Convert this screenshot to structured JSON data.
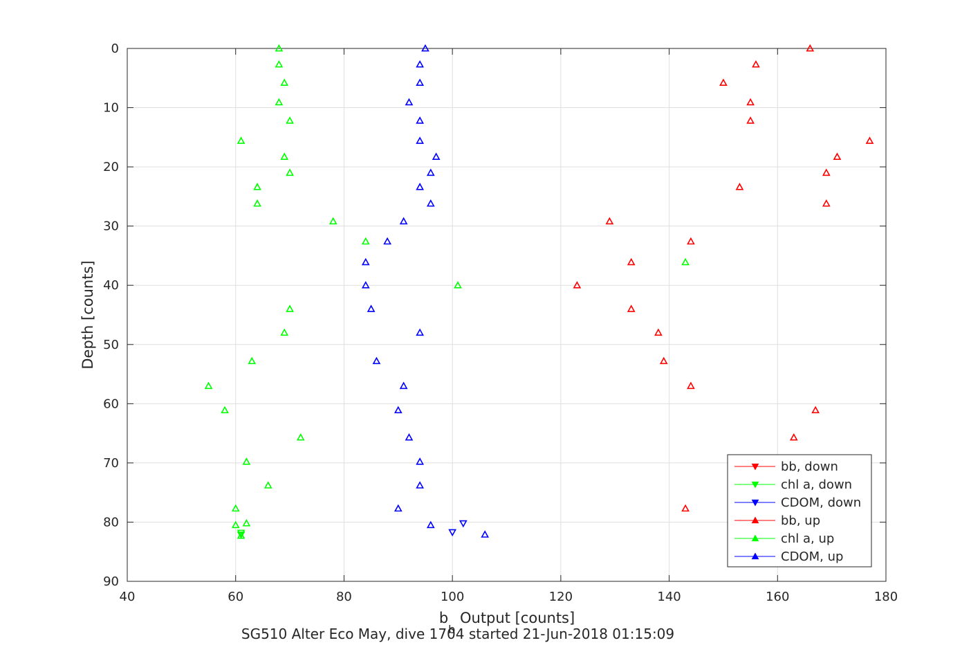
{
  "chart_data": {
    "type": "scatter",
    "xlabel_main": "b",
    "xlabel_sub": "b",
    "xlabel_rest": " Output [counts]",
    "ylabel": "Depth [counts]",
    "subtitle": "SG510 Alter Eco May, dive 1704 started 21-Jun-2018 01:15:09",
    "xlim": [
      40,
      180
    ],
    "ylim": [
      0,
      90
    ],
    "y_reversed": true,
    "x_ticks": [
      40,
      60,
      80,
      100,
      120,
      140,
      160,
      180
    ],
    "y_ticks": [
      0,
      10,
      20,
      30,
      40,
      50,
      60,
      70,
      80,
      90
    ],
    "grid": true,
    "legend_position": "bottom-right",
    "series": [
      {
        "name": "bb, down",
        "color": "#ff0000",
        "marker": "triangle-down",
        "points": []
      },
      {
        "name": "chl a, down",
        "color": "#00ff00",
        "marker": "triangle-down",
        "points": [
          [
            61,
            81.8
          ],
          [
            61,
            82.1
          ]
        ]
      },
      {
        "name": "CDOM, down",
        "color": "#0000ff",
        "marker": "triangle-down",
        "points": [
          [
            102,
            80.2
          ],
          [
            100,
            81.7
          ]
        ]
      },
      {
        "name": "bb, up",
        "color": "#ff0000",
        "marker": "triangle-up",
        "points": [
          [
            166,
            0
          ],
          [
            156,
            2.7
          ],
          [
            150,
            5.8
          ],
          [
            155,
            9.1
          ],
          [
            155,
            12.2
          ],
          [
            177,
            15.6
          ],
          [
            171,
            18.3
          ],
          [
            169,
            21
          ],
          [
            153,
            23.4
          ],
          [
            169,
            26.2
          ],
          [
            129,
            29.2
          ],
          [
            144,
            32.6
          ],
          [
            133,
            36.1
          ],
          [
            123,
            40
          ],
          [
            133,
            44
          ],
          [
            138,
            48
          ],
          [
            139,
            52.8
          ],
          [
            144,
            57
          ],
          [
            167,
            61.1
          ],
          [
            163,
            65.7
          ],
          [
            143,
            77.7
          ]
        ]
      },
      {
        "name": "chl a, up",
        "color": "#00ff00",
        "marker": "triangle-up",
        "points": [
          [
            68,
            0
          ],
          [
            68,
            2.7
          ],
          [
            69,
            5.8
          ],
          [
            68,
            9.1
          ],
          [
            70,
            12.2
          ],
          [
            61,
            15.6
          ],
          [
            69,
            18.3
          ],
          [
            70,
            21
          ],
          [
            64,
            23.4
          ],
          [
            64,
            26.2
          ],
          [
            78,
            29.2
          ],
          [
            84,
            32.6
          ],
          [
            143,
            36.1
          ],
          [
            101,
            40
          ],
          [
            70,
            44
          ],
          [
            69,
            48
          ],
          [
            63,
            52.8
          ],
          [
            55,
            57
          ],
          [
            58,
            61.1
          ],
          [
            72,
            65.7
          ],
          [
            62,
            69.8
          ],
          [
            66,
            73.8
          ],
          [
            60,
            77.7
          ],
          [
            62,
            80.2
          ],
          [
            60,
            80.5
          ],
          [
            61,
            82.3
          ]
        ]
      },
      {
        "name": "CDOM, up",
        "color": "#0000ff",
        "marker": "triangle-up",
        "points": [
          [
            95,
            0
          ],
          [
            94,
            2.7
          ],
          [
            94,
            5.8
          ],
          [
            92,
            9.1
          ],
          [
            94,
            12.2
          ],
          [
            94,
            15.6
          ],
          [
            97,
            18.3
          ],
          [
            96,
            21
          ],
          [
            94,
            23.4
          ],
          [
            96,
            26.2
          ],
          [
            91,
            29.2
          ],
          [
            88,
            32.6
          ],
          [
            84,
            36.1
          ],
          [
            84,
            40
          ],
          [
            85,
            44
          ],
          [
            94,
            48
          ],
          [
            86,
            52.8
          ],
          [
            91,
            57
          ],
          [
            90,
            61.1
          ],
          [
            92,
            65.7
          ],
          [
            94,
            69.8
          ],
          [
            94,
            73.8
          ],
          [
            90,
            77.7
          ],
          [
            96,
            80.5
          ],
          [
            106,
            82.1
          ]
        ]
      }
    ]
  }
}
